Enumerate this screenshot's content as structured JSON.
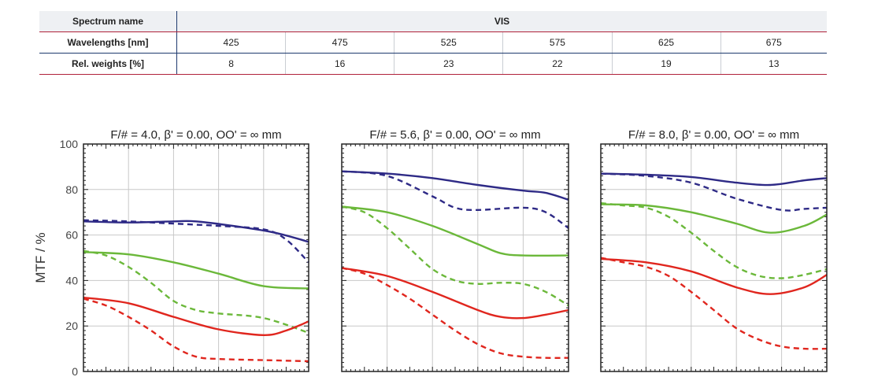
{
  "table": {
    "spectrum_label": "Spectrum name",
    "spectrum_value": "VIS",
    "wavelengths_label": "Wavelengths [nm]",
    "wavelengths": [
      "425",
      "475",
      "525",
      "575",
      "625",
      "675"
    ],
    "weights_label": "Rel. weights [%]",
    "weights": [
      "8",
      "16",
      "23",
      "22",
      "19",
      "13"
    ]
  },
  "chart_data": {
    "type": "line",
    "ylabel": "MTF / %",
    "ylim": [
      0,
      100
    ],
    "yticks": [
      0,
      20,
      40,
      60,
      80,
      100
    ],
    "xlim": [
      0,
      1
    ],
    "grid": true,
    "series_colors": {
      "navy": "#2e2a86",
      "green": "#6bb83a",
      "red": "#e0261e"
    },
    "panels": [
      {
        "title": "F/# = 4.0, β' = 0.00, OO' = ∞ mm",
        "series": [
          {
            "color": "navy",
            "style": "solid",
            "x": [
              0,
              0.2,
              0.4,
              0.5,
              0.7,
              0.85,
              1.0
            ],
            "y": [
              66,
              65.5,
              66,
              66,
              63.5,
              61,
              57
            ]
          },
          {
            "color": "navy",
            "style": "dashed",
            "x": [
              0,
              0.2,
              0.4,
              0.6,
              0.8,
              0.9,
              1.0
            ],
            "y": [
              66.5,
              66,
              65,
              64,
              62.5,
              58,
              48
            ]
          },
          {
            "color": "green",
            "style": "solid",
            "x": [
              0,
              0.2,
              0.4,
              0.6,
              0.8,
              1.0
            ],
            "y": [
              52.5,
              51.5,
              48,
              43,
              37.5,
              36.5
            ]
          },
          {
            "color": "green",
            "style": "dashed",
            "x": [
              0,
              0.1,
              0.2,
              0.3,
              0.4,
              0.5,
              0.6,
              0.8,
              1.0
            ],
            "y": [
              53,
              51,
              46,
              39,
              31,
              27,
              25.5,
              23.5,
              17
            ]
          },
          {
            "color": "red",
            "style": "solid",
            "x": [
              0,
              0.2,
              0.4,
              0.6,
              0.8,
              0.9,
              1.0
            ],
            "y": [
              32.5,
              30,
              24,
              18.5,
              16,
              18,
              22
            ]
          },
          {
            "color": "red",
            "style": "dashed",
            "x": [
              0,
              0.1,
              0.2,
              0.3,
              0.4,
              0.5,
              0.6,
              0.8,
              1.0
            ],
            "y": [
              32,
              29,
              24,
              18,
              11,
              6.5,
              5.5,
              5,
              4.5
            ]
          }
        ]
      },
      {
        "title": "F/# = 5.6, β' = 0.00, OO' = ∞ mm",
        "series": [
          {
            "color": "navy",
            "style": "solid",
            "x": [
              0,
              0.2,
              0.4,
              0.6,
              0.8,
              0.9,
              1.0
            ],
            "y": [
              88,
              87,
              85,
              82,
              79.5,
              78.5,
              75.5
            ]
          },
          {
            "color": "navy",
            "style": "dashed",
            "x": [
              0,
              0.2,
              0.4,
              0.5,
              0.6,
              0.8,
              0.9,
              1.0
            ],
            "y": [
              88,
              86,
              77,
              72,
              71,
              72,
              70,
              63
            ]
          },
          {
            "color": "green",
            "style": "solid",
            "x": [
              0,
              0.2,
              0.4,
              0.6,
              0.7,
              0.8,
              1.0
            ],
            "y": [
              72.5,
              70,
              64,
              56,
              52,
              51,
              51
            ]
          },
          {
            "color": "green",
            "style": "dashed",
            "x": [
              0,
              0.1,
              0.2,
              0.3,
              0.4,
              0.5,
              0.6,
              0.7,
              0.8,
              0.9,
              1.0
            ],
            "y": [
              72.5,
              70,
              63,
              54,
              45,
              40,
              38.5,
              39,
              38.5,
              35,
              29
            ]
          },
          {
            "color": "red",
            "style": "solid",
            "x": [
              0,
              0.2,
              0.4,
              0.6,
              0.7,
              0.8,
              0.9,
              1.0
            ],
            "y": [
              45.5,
              42,
              35,
              27,
              24,
              23.5,
              25,
              27
            ]
          },
          {
            "color": "red",
            "style": "dashed",
            "x": [
              0,
              0.1,
              0.2,
              0.3,
              0.4,
              0.5,
              0.6,
              0.7,
              0.8,
              0.9,
              1.0
            ],
            "y": [
              45.5,
              43,
              38,
              32,
              25,
              18,
              12,
              8,
              6.5,
              6,
              6
            ]
          }
        ]
      },
      {
        "title": "F/# = 8.0, β' = 0.00, OO' = ∞ mm",
        "series": [
          {
            "color": "navy",
            "style": "solid",
            "x": [
              0,
              0.2,
              0.4,
              0.6,
              0.75,
              0.9,
              1.0
            ],
            "y": [
              87,
              86.5,
              85.5,
              83,
              82,
              84,
              85
            ]
          },
          {
            "color": "navy",
            "style": "dashed",
            "x": [
              0,
              0.2,
              0.4,
              0.6,
              0.8,
              0.9,
              1.0
            ],
            "y": [
              87,
              86,
              83,
              76,
              71,
              71.5,
              72
            ]
          },
          {
            "color": "green",
            "style": "solid",
            "x": [
              0,
              0.2,
              0.4,
              0.6,
              0.75,
              0.9,
              1.0
            ],
            "y": [
              73.5,
              73,
              70,
              65,
              61,
              64,
              69
            ]
          },
          {
            "color": "green",
            "style": "dashed",
            "x": [
              0,
              0.1,
              0.2,
              0.3,
              0.4,
              0.5,
              0.6,
              0.7,
              0.8,
              0.9,
              1.0
            ],
            "y": [
              74,
              73,
              72,
              68,
              61,
              53,
              46,
              42,
              41,
              42.5,
              45
            ]
          },
          {
            "color": "red",
            "style": "solid",
            "x": [
              0,
              0.2,
              0.4,
              0.6,
              0.75,
              0.9,
              1.0
            ],
            "y": [
              49.5,
              48,
              44,
              37,
              34,
              37,
              42.5
            ]
          },
          {
            "color": "red",
            "style": "dashed",
            "x": [
              0,
              0.1,
              0.2,
              0.3,
              0.4,
              0.5,
              0.6,
              0.7,
              0.8,
              0.9,
              1.0
            ],
            "y": [
              50,
              48,
              46,
              42,
              35,
              27,
              19,
              14,
              11,
              10,
              10
            ]
          }
        ]
      }
    ]
  }
}
